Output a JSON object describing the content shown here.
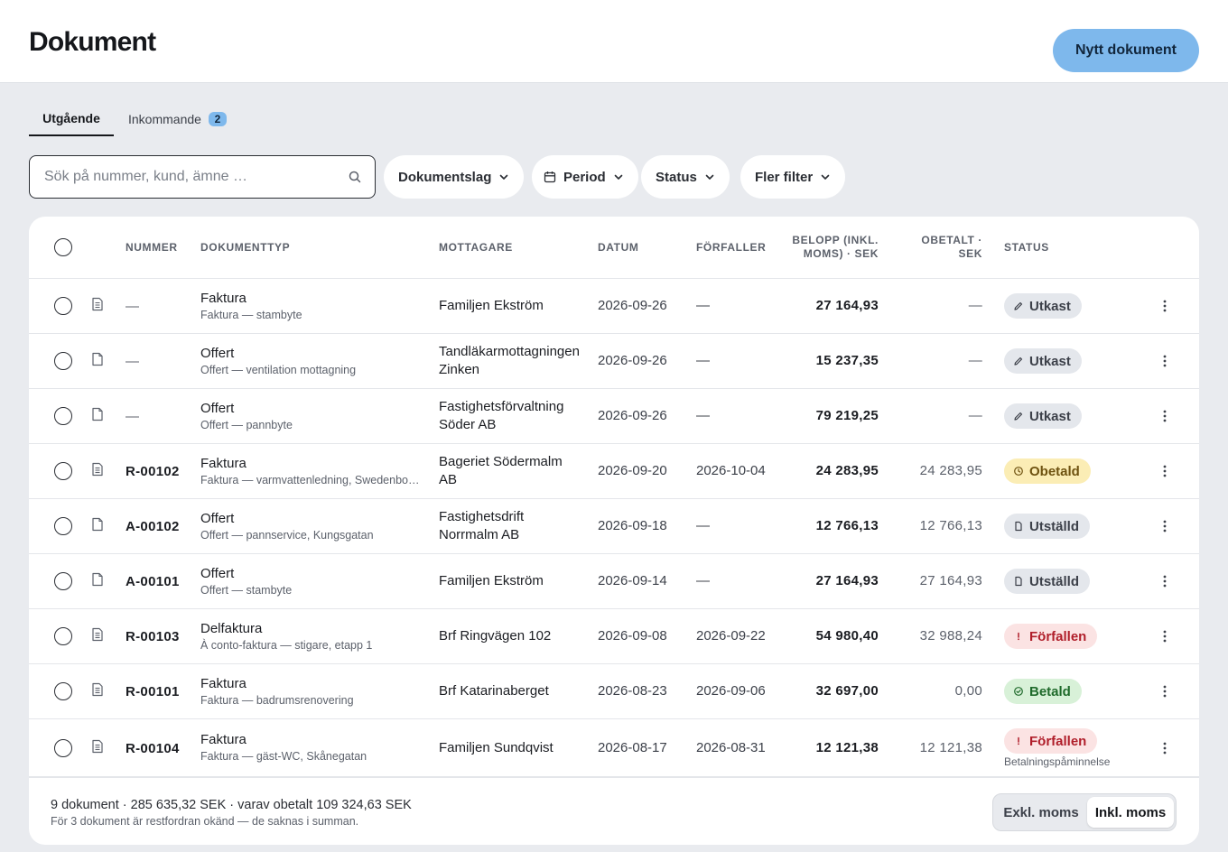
{
  "header": {
    "title": "Dokument",
    "new_button": "Nytt dokument"
  },
  "tabs": [
    {
      "label": "Utgående",
      "active": true
    },
    {
      "label": "Inkommande",
      "badge": "2",
      "active": false
    }
  ],
  "search": {
    "placeholder": "Sök på nummer, kund, ämne …",
    "value": "",
    "icon": "search-icon"
  },
  "filters": [
    {
      "label": "Dokumentslag",
      "icon": "chevron-down-icon"
    },
    {
      "label": "Period",
      "icon": "calendar-icon"
    },
    {
      "label": "Status",
      "icon": "chevron-down-icon"
    },
    {
      "label": "Fler filter",
      "icon": "chevron-down-icon"
    }
  ],
  "table": {
    "columns": {
      "number": "NUMMER",
      "doctype": "DOKUMENTTYP",
      "recipient": "MOTTAGARE",
      "date": "DATUM",
      "due": "FÖRFALLER",
      "amount": [
        "BELOPP (INKL.",
        "MOMS) · SEK"
      ],
      "unpaid": [
        "OBETALT ·",
        "SEK"
      ],
      "status": "STATUS"
    },
    "rows": [
      {
        "number": "—",
        "type": "Faktura",
        "subject": "Faktura — stambyte",
        "recipient": [
          "Familjen Ekström"
        ],
        "date": "2026-09-26",
        "due": "—",
        "amount": "27 164,93",
        "unpaid": "—",
        "status": "Utkast",
        "status_kind": "draft",
        "icon": "invoice-icon"
      },
      {
        "number": "—",
        "type": "Offert",
        "subject": "Offert — ventilation mottagning",
        "recipient": [
          "Tandläkarmottagningen",
          "Zinken"
        ],
        "date": "2026-09-26",
        "due": "—",
        "amount": "15 237,35",
        "unpaid": "—",
        "status": "Utkast",
        "status_kind": "draft",
        "icon": "document-icon"
      },
      {
        "number": "—",
        "type": "Offert",
        "subject": "Offert — pannbyte",
        "recipient": [
          "Fastighetsförvaltning",
          "Söder AB"
        ],
        "date": "2026-09-26",
        "due": "—",
        "amount": "79 219,25",
        "unpaid": "—",
        "status": "Utkast",
        "status_kind": "draft",
        "icon": "document-icon"
      },
      {
        "number": "R-00102",
        "type": "Faktura",
        "subject": "Faktura — varmvattenledning, Swedenbo…",
        "recipient": [
          "Bageriet Södermalm",
          "AB"
        ],
        "date": "2026-09-20",
        "due": "2026-10-04",
        "amount": "24 283,95",
        "unpaid": "24 283,95",
        "status": "Obetald",
        "status_kind": "unpaid",
        "icon": "invoice-icon"
      },
      {
        "number": "A-00102",
        "type": "Offert",
        "subject": "Offert — pannservice, Kungsgatan",
        "recipient": [
          "Fastighetsdrift",
          "Norrmalm AB"
        ],
        "date": "2026-09-18",
        "due": "—",
        "amount": "12 766,13",
        "unpaid": "12 766,13",
        "status": "Utställd",
        "status_kind": "issued",
        "icon": "document-icon"
      },
      {
        "number": "A-00101",
        "type": "Offert",
        "subject": "Offert — stambyte",
        "recipient": [
          "Familjen Ekström"
        ],
        "date": "2026-09-14",
        "due": "—",
        "amount": "27 164,93",
        "unpaid": "27 164,93",
        "status": "Utställd",
        "status_kind": "issued",
        "icon": "document-icon"
      },
      {
        "number": "R-00103",
        "type": "Delfaktura",
        "subject": "À conto-faktura — stigare, etapp 1",
        "recipient": [
          "Brf Ringvägen 102"
        ],
        "date": "2026-09-08",
        "due": "2026-09-22",
        "amount": "54 980,40",
        "unpaid": "32 988,24",
        "status": "Förfallen",
        "status_kind": "overdue",
        "icon": "invoice-icon"
      },
      {
        "number": "R-00101",
        "type": "Faktura",
        "subject": "Faktura — badrumsrenovering",
        "recipient": [
          "Brf Katarinaberget"
        ],
        "date": "2026-08-23",
        "due": "2026-09-06",
        "amount": "32 697,00",
        "unpaid": "0,00",
        "status": "Betald",
        "status_kind": "paid",
        "icon": "invoice-icon"
      },
      {
        "number": "R-00104",
        "type": "Faktura",
        "subject": "Faktura — gäst-WC, Skånegatan",
        "recipient": [
          "Familjen Sundqvist"
        ],
        "date": "2026-08-17",
        "due": "2026-08-31",
        "amount": "12 121,38",
        "unpaid": "12 121,38",
        "status": "Förfallen",
        "status_kind": "overdue",
        "substatus": "Betalningspåminnelse",
        "icon": "invoice-icon"
      }
    ]
  },
  "footer": {
    "summary": "9 dokument · 285 635,32 SEK · varav obetalt 109 324,63 SEK",
    "note": "För 3 dokument är restfordran okänd — de saknas i summan.",
    "vat_toggle": {
      "excl": "Exkl. moms",
      "incl": "Inkl. moms",
      "selected": "incl"
    }
  },
  "colors": {
    "accent": "#7eb8ec",
    "background": "#e9ebef",
    "overdue": "#b01e2a",
    "paid": "#1f6a2b",
    "unpaid": "#6e5210"
  }
}
